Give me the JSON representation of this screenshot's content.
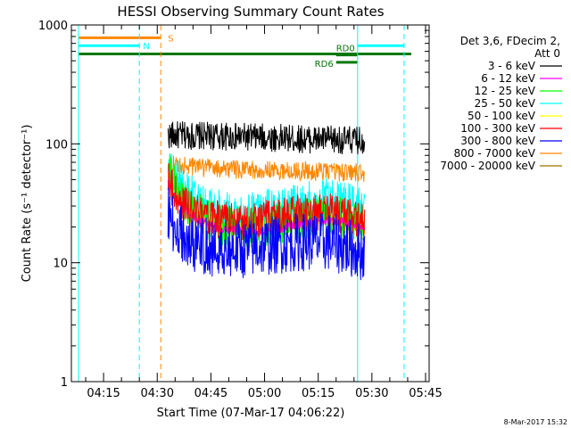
{
  "chart_data": {
    "type": "line",
    "title": "HESSI Observing Summary Count Rates",
    "xlabel": "Start Time (07-Mar-17 04:06:22)",
    "ylabel": "Count Rate (s⁻¹ detector⁻¹)",
    "y_scale": "log",
    "ylim": [
      1,
      1000
    ],
    "xlim": [
      "04:06",
      "05:46"
    ],
    "x_tick_labels": [
      "04:15",
      "04:30",
      "04:45",
      "05:00",
      "05:15",
      "05:30",
      "05:45"
    ],
    "x_tick_minutes": [
      15,
      30,
      45,
      60,
      75,
      90,
      105
    ],
    "y_tick_labels": [
      "1",
      "10",
      "100",
      "1000"
    ],
    "y_tick_values": [
      1,
      10,
      100,
      1000
    ],
    "legend_placement": "right",
    "legend_header": [
      "Det 3,6, FDecim 2,",
      "Att 0"
    ],
    "series": [
      {
        "name": "3 - 6 keV",
        "color": "#000000",
        "x": [
          33,
          40,
          50,
          60,
          70,
          80,
          88
        ],
        "y": [
          118,
          117,
          115,
          113,
          110,
          108,
          106
        ]
      },
      {
        "name": "6 - 12 keV",
        "color": "#ff00ff",
        "x": [
          33,
          35,
          38,
          42,
          48,
          55,
          62,
          70,
          78,
          85,
          88
        ],
        "y": [
          48,
          35,
          28,
          22,
          19,
          18,
          19,
          21,
          23,
          21,
          20
        ]
      },
      {
        "name": "12 - 25 keV",
        "color": "#00ff00",
        "x": [
          33,
          35,
          38,
          42,
          48,
          55,
          62,
          70,
          78,
          85,
          88
        ],
        "y": [
          60,
          42,
          32,
          25,
          21,
          20,
          21,
          23,
          25,
          22,
          21
        ]
      },
      {
        "name": "25 - 50 keV",
        "color": "#00ffff",
        "x": [
          33,
          35,
          38,
          42,
          48,
          55,
          62,
          70,
          78,
          85,
          88
        ],
        "y": [
          65,
          50,
          38,
          30,
          26,
          25,
          27,
          30,
          33,
          29,
          26
        ]
      },
      {
        "name": "50 - 100 keV",
        "color": "#ffff00",
        "x": [
          33,
          35,
          38,
          42,
          48,
          55,
          62,
          70,
          78,
          85,
          88
        ],
        "y": [
          55,
          40,
          30,
          24,
          20,
          19,
          20,
          22,
          24,
          21,
          20
        ]
      },
      {
        "name": "100 - 300 keV",
        "color": "#ff0000",
        "x": [
          33,
          35,
          38,
          42,
          48,
          55,
          62,
          70,
          78,
          85,
          88
        ],
        "y": [
          50,
          38,
          30,
          25,
          23,
          22,
          24,
          26,
          27,
          24,
          22
        ]
      },
      {
        "name": "300 - 800 keV",
        "color": "#0000ff",
        "x": [
          33,
          35,
          38,
          42,
          48,
          55,
          62,
          70,
          78,
          85,
          88
        ],
        "y": [
          25,
          19,
          16,
          14,
          13,
          13,
          14,
          15,
          15,
          13,
          12
        ]
      },
      {
        "name": "800 - 7000 keV",
        "color": "#ff8800",
        "x": [
          33,
          40,
          50,
          60,
          70,
          80,
          88
        ],
        "y": [
          67,
          64,
          61,
          60,
          59,
          58,
          57
        ]
      },
      {
        "name": "7000 - 20000 keV",
        "color": "#a07000",
        "x": [],
        "y": []
      }
    ],
    "vertical_lines": [
      {
        "minute": 8,
        "style": "solid",
        "color": "#00ffff"
      },
      {
        "minute": 25,
        "style": "dashed",
        "color": "#00ffff"
      },
      {
        "minute": 31,
        "style": "dashed",
        "color": "#ff8800"
      },
      {
        "minute": 86,
        "style": "solid",
        "color": "#00ffff"
      },
      {
        "minute": 99,
        "style": "dashed",
        "color": "#00ffff"
      }
    ],
    "flag_bars": [
      {
        "label": "S",
        "color": "#ff8800",
        "segments": [
          [
            8,
            31
          ]
        ],
        "level": 780,
        "label_at": 33
      },
      {
        "label": "N",
        "color": "#00ffff",
        "segments": [
          [
            8,
            25
          ],
          [
            86,
            99
          ]
        ],
        "level": 670,
        "label_at": 26
      },
      {
        "label": "",
        "color": "#007700",
        "segments": [
          [
            8,
            101
          ]
        ],
        "level": 570,
        "label_at": null
      },
      {
        "label": "RD0",
        "color": "#007700",
        "segments": [
          [
            80,
            86
          ]
        ],
        "level": 560,
        "label_at": 80
      },
      {
        "label": "RD6",
        "color": "#007700",
        "segments": [
          [
            80,
            86
          ]
        ],
        "level": 485,
        "label_at": 74
      }
    ]
  },
  "timestamp": "8-Mar-2017 15:32"
}
